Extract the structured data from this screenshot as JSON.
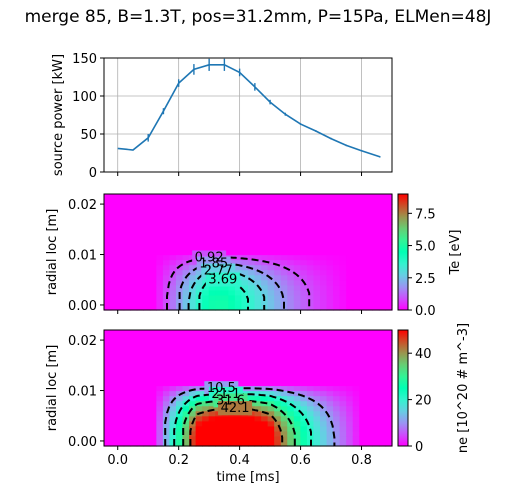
{
  "chart_data": {
    "title": "merge 85, B=1.3T, pos=31.2mm, P=15Pa, ELMen=48J",
    "panels": [
      {
        "type": "line",
        "ylabel": "source power [kW]",
        "xlim": [
          -0.045,
          0.9
        ],
        "ylim": [
          0,
          150
        ],
        "yticks": [
          0,
          50,
          100,
          150
        ],
        "grid": true,
        "color": "#1f77b4",
        "series": [
          {
            "x": [
              0.0,
              0.05,
              0.1,
              0.15,
              0.2,
              0.25,
              0.3,
              0.35,
              0.4,
              0.45,
              0.5,
              0.55,
              0.6,
              0.65,
              0.7,
              0.75,
              0.8,
              0.86
            ],
            "y": [
              31,
              29,
              45,
              80,
              117,
              135,
              141,
              141,
              131,
              112,
              92,
              76,
              63,
              54,
              44,
              35,
              28,
              20
            ],
            "err": [
              0,
              0,
              5,
              4,
              5,
              7,
              8,
              8,
              5,
              5,
              3,
              2,
              1,
              1,
              1,
              1,
              1,
              1
            ]
          }
        ]
      },
      {
        "type": "heatmap",
        "ylabel": "radial loc [m]",
        "yticks": [
          0.0,
          0.01,
          0.02
        ],
        "ylim": [
          -0.001,
          0.022
        ],
        "colorbar": {
          "label": "Te [eV]",
          "min": 0,
          "max": 9,
          "ticks": [
            0.0,
            2.5,
            5.0,
            7.5
          ]
        },
        "peak": 4.8,
        "peak_t": 0.34,
        "rise_t": [
          0.12,
          0.3
        ],
        "fall_t": [
          0.36,
          0.76
        ],
        "r_width": 0.0105,
        "contour_levels": [
          0.92,
          1.85,
          2.77,
          3.69
        ],
        "contour_labels": [
          "0.92",
          "1.85",
          "2.77",
          "3.69"
        ]
      },
      {
        "type": "heatmap",
        "ylabel": "radial loc [m]",
        "xlabel": "time [ms]",
        "yticks": [
          0.0,
          0.01,
          0.02
        ],
        "ylim": [
          -0.001,
          0.022
        ],
        "xticks": [
          0.0,
          0.2,
          0.4,
          0.6,
          0.8
        ],
        "colorbar": {
          "label": "ne [10^20 # m^-3]",
          "min": 0,
          "max": 50,
          "ticks": [
            0,
            20,
            40
          ]
        },
        "peak": 62,
        "peak_t": 0.38,
        "rise_t": [
          0.12,
          0.26
        ],
        "fall_t": [
          0.5,
          0.8
        ],
        "r_width": 0.0115,
        "contour_levels": [
          10.5,
          21.1,
          31.6,
          42.1
        ],
        "contour_labels": [
          "10.5",
          "21.1",
          "31.6",
          "42.1"
        ]
      }
    ]
  }
}
